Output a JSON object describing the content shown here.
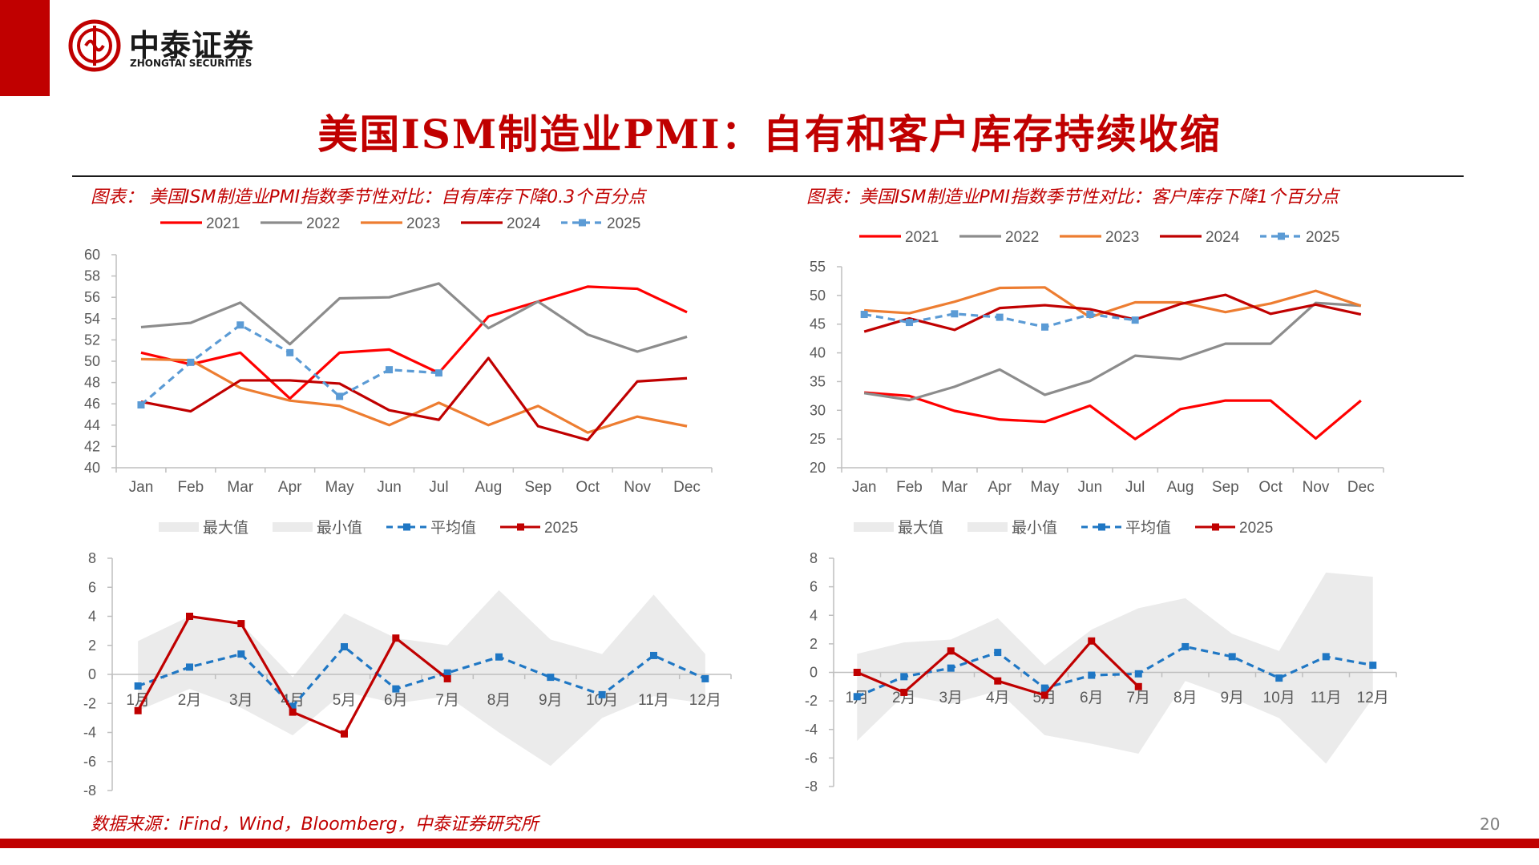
{
  "brand": {
    "name_cn": "中泰证券",
    "name_en": "ZHONGTAI SECURITIES",
    "color": "#c00000"
  },
  "page_title": "美国ISM制造业PMI：自有和客户库存持续收缩",
  "source": "数据来源：iFind，Wind，Bloomberg，中泰证券研究所",
  "page_number": "20",
  "charts": {
    "left_title": "图表： 美国ISM制造业PMI指数季节性对比：自有库存下降0.3个百分点",
    "right_title": "图表：美国ISM制造业PMI指数季节性对比：客户库存下降1个百分点"
  },
  "chart_data": [
    {
      "type": "line",
      "panel": "left-top",
      "categories": [
        "Jan",
        "Feb",
        "Mar",
        "Apr",
        "May",
        "Jun",
        "Jul",
        "Aug",
        "Sep",
        "Oct",
        "Nov",
        "Dec"
      ],
      "ylim": [
        40,
        60
      ],
      "yticks": [
        40,
        42,
        44,
        46,
        48,
        50,
        52,
        54,
        56,
        58,
        60
      ],
      "grid": false,
      "legend": "top",
      "series": [
        {
          "name": "2021",
          "color": "#ff0000",
          "dash": "solid",
          "values": [
            50.8,
            49.7,
            50.8,
            46.5,
            50.8,
            51.1,
            48.9,
            54.2,
            55.6,
            57.0,
            56.8,
            54.6
          ]
        },
        {
          "name": "2022",
          "color": "#8c8c8c",
          "dash": "solid",
          "values": [
            53.2,
            53.6,
            55.5,
            51.6,
            55.9,
            56.0,
            57.3,
            53.1,
            55.6,
            52.5,
            50.9,
            52.3
          ]
        },
        {
          "name": "2023",
          "color": "#ed7d31",
          "dash": "solid",
          "values": [
            50.2,
            50.1,
            47.5,
            46.3,
            45.8,
            44.0,
            46.1,
            44.0,
            45.8,
            43.3,
            44.8,
            43.9
          ]
        },
        {
          "name": "2024",
          "color": "#c00000",
          "dash": "solid",
          "values": [
            46.2,
            45.3,
            48.2,
            48.2,
            47.9,
            45.4,
            44.5,
            50.3,
            43.9,
            42.6,
            48.1,
            48.4
          ]
        },
        {
          "name": "2025",
          "color": "#5b9bd5",
          "dash": "dash",
          "marker": "square",
          "values": [
            45.9,
            49.9,
            53.4,
            50.8,
            46.7,
            49.2,
            48.9,
            null,
            null,
            null,
            null,
            null
          ]
        }
      ]
    },
    {
      "type": "line",
      "panel": "right-top",
      "categories": [
        "Jan",
        "Feb",
        "Mar",
        "Apr",
        "May",
        "Jun",
        "Jul",
        "Aug",
        "Sep",
        "Oct",
        "Nov",
        "Dec"
      ],
      "ylim": [
        20,
        55
      ],
      "yticks": [
        20,
        25,
        30,
        35,
        40,
        45,
        50,
        55
      ],
      "grid": false,
      "legend": "top",
      "series": [
        {
          "name": "2021",
          "color": "#ff0000",
          "dash": "solid",
          "values": [
            33.1,
            32.5,
            29.9,
            28.4,
            28.0,
            30.8,
            25.0,
            30.2,
            31.7,
            31.7,
            25.1,
            31.7
          ]
        },
        {
          "name": "2022",
          "color": "#8c8c8c",
          "dash": "solid",
          "values": [
            33.0,
            31.8,
            34.1,
            37.1,
            32.7,
            35.1,
            39.5,
            38.9,
            41.6,
            41.6,
            48.7,
            48.2
          ]
        },
        {
          "name": "2023",
          "color": "#ed7d31",
          "dash": "solid",
          "values": [
            47.4,
            46.9,
            48.9,
            51.3,
            51.4,
            46.2,
            48.8,
            48.8,
            47.1,
            48.6,
            50.8,
            48.2
          ]
        },
        {
          "name": "2024",
          "color": "#c00000",
          "dash": "solid",
          "values": [
            43.7,
            46.0,
            44.0,
            47.8,
            48.3,
            47.6,
            45.8,
            48.5,
            50.1,
            46.8,
            48.4,
            46.7
          ]
        },
        {
          "name": "2025",
          "color": "#5b9bd5",
          "dash": "dash",
          "marker": "square",
          "values": [
            46.7,
            45.3,
            46.8,
            46.2,
            44.5,
            46.7,
            45.7,
            null,
            null,
            null,
            null,
            null
          ]
        }
      ]
    },
    {
      "type": "area",
      "panel": "left-bottom",
      "categories": [
        "1月",
        "2月",
        "3月",
        "4月",
        "5月",
        "6月",
        "7月",
        "8月",
        "9月",
        "10月",
        "11月",
        "12月"
      ],
      "ylim": [
        -8,
        8
      ],
      "yticks": [
        -8,
        -6,
        -4,
        -2,
        0,
        2,
        4,
        6,
        8
      ],
      "grid": false,
      "legend": "top",
      "legend_labels": [
        "最大值",
        "最小值",
        "平均值",
        "2025"
      ],
      "max": [
        2.3,
        4.0,
        3.5,
        -0.2,
        4.2,
        2.5,
        2.0,
        5.8,
        2.4,
        1.4,
        5.5,
        1.4
      ],
      "min": [
        -2.5,
        -1.0,
        -2.3,
        -4.2,
        -1.2,
        -2.0,
        -1.5,
        -4.0,
        -6.3,
        -3.0,
        -1.5,
        -2.0
      ],
      "series": [
        {
          "name": "平均值",
          "color": "#1f77c4",
          "dash": "dash",
          "marker": "square",
          "values": [
            -0.8,
            0.5,
            1.4,
            -2.2,
            1.9,
            -1.0,
            0.1,
            1.2,
            -0.2,
            -1.4,
            1.3,
            -0.3
          ]
        },
        {
          "name": "2025",
          "color": "#c00000",
          "dash": "solid",
          "marker": "square",
          "values": [
            -2.5,
            4.0,
            3.5,
            -2.6,
            -4.1,
            2.5,
            -0.3,
            null,
            null,
            null,
            null,
            null
          ]
        }
      ]
    },
    {
      "type": "area",
      "panel": "right-bottom",
      "categories": [
        "1月",
        "2月",
        "3月",
        "4月",
        "5月",
        "6月",
        "7月",
        "8月",
        "9月",
        "10月",
        "11月",
        "12月"
      ],
      "ylim": [
        -8,
        8
      ],
      "yticks": [
        -8,
        -6,
        -4,
        -2,
        0,
        2,
        4,
        6,
        8
      ],
      "grid": false,
      "legend": "top",
      "legend_labels": [
        "最大值",
        "最小值",
        "平均值",
        "2025"
      ],
      "max": [
        1.3,
        2.1,
        2.3,
        3.8,
        0.5,
        3.0,
        4.5,
        5.2,
        2.7,
        1.5,
        7.0,
        6.7
      ],
      "min": [
        -4.8,
        -1.6,
        -2.2,
        -1.3,
        -4.4,
        -5.0,
        -5.7,
        -0.6,
        -1.8,
        -3.2,
        -6.4,
        -1.8
      ],
      "series": [
        {
          "name": "平均值",
          "color": "#1f77c4",
          "dash": "dash",
          "marker": "square",
          "values": [
            -1.7,
            -0.3,
            0.3,
            1.4,
            -1.1,
            -0.2,
            -0.1,
            1.8,
            1.1,
            -0.4,
            1.1,
            0.5
          ]
        },
        {
          "name": "2025",
          "color": "#c00000",
          "dash": "solid",
          "marker": "square",
          "values": [
            0.0,
            -1.4,
            1.5,
            -0.6,
            -1.6,
            2.2,
            -1.0,
            null,
            null,
            null,
            null,
            null
          ]
        }
      ]
    }
  ]
}
